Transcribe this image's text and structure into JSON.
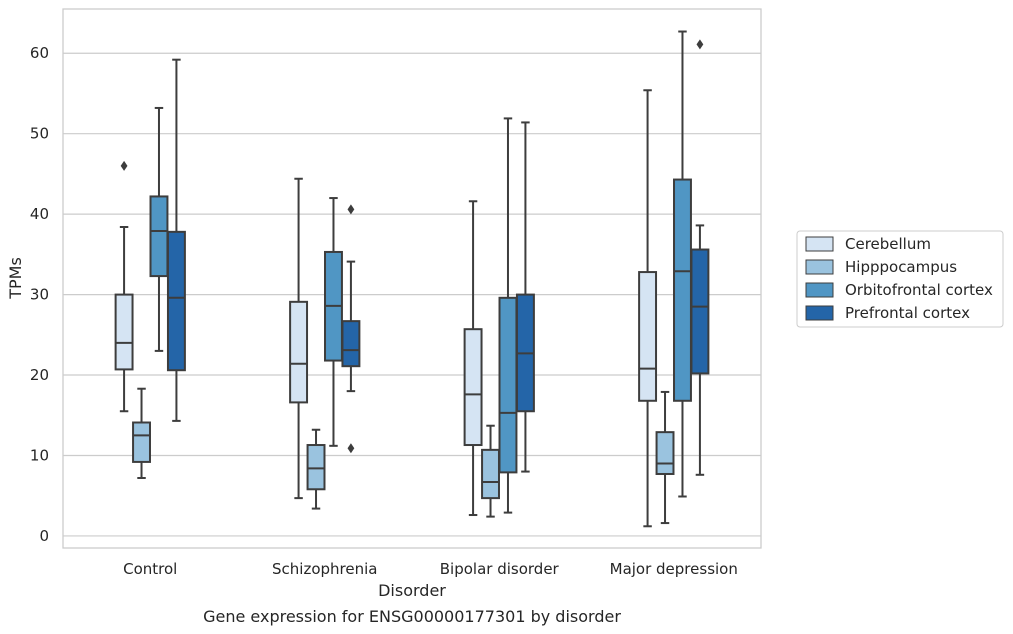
{
  "chart_data": {
    "type": "box",
    "title": "",
    "caption": "Gene expression for ENSG00000177301 by disorder",
    "xlabel": "Disorder",
    "ylabel": "TPMs",
    "ylim": [
      -1.5,
      65.5
    ],
    "yticks": [
      0,
      10,
      20,
      30,
      40,
      50,
      60
    ],
    "grid": "horizontal",
    "legend_position": "right",
    "categories": [
      "Control",
      "Schizophrenia",
      "Bipolar disorder",
      "Major depression"
    ],
    "series": [
      {
        "name": "Cerebellum",
        "color": "#d5e4f3",
        "boxes": [
          {
            "whislo": 15.5,
            "q1": 20.7,
            "med": 24.0,
            "q3": 30.0,
            "whishi": 38.4,
            "fliers": [
              46.0
            ]
          },
          {
            "whislo": 4.7,
            "q1": 16.6,
            "med": 21.4,
            "q3": 29.1,
            "whishi": 44.4,
            "fliers": []
          },
          {
            "whislo": 2.6,
            "q1": 11.3,
            "med": 17.6,
            "q3": 25.7,
            "whishi": 41.6,
            "fliers": []
          },
          {
            "whislo": 1.2,
            "q1": 16.8,
            "med": 20.8,
            "q3": 32.8,
            "whishi": 55.4,
            "fliers": []
          }
        ]
      },
      {
        "name": "Hipppocampus",
        "color": "#9ac3df",
        "boxes": [
          {
            "whislo": 7.2,
            "q1": 9.2,
            "med": 12.5,
            "q3": 14.1,
            "whishi": 18.3,
            "fliers": []
          },
          {
            "whislo": 3.4,
            "q1": 5.8,
            "med": 8.4,
            "q3": 11.3,
            "whishi": 13.2,
            "fliers": []
          },
          {
            "whislo": 2.4,
            "q1": 4.7,
            "med": 6.7,
            "q3": 10.7,
            "whishi": 13.7,
            "fliers": []
          },
          {
            "whislo": 1.6,
            "q1": 7.7,
            "med": 9.0,
            "q3": 12.9,
            "whishi": 17.9,
            "fliers": []
          }
        ]
      },
      {
        "name": "Orbitofrontal cortex",
        "color": "#5096c4",
        "boxes": [
          {
            "whislo": 23.0,
            "q1": 32.3,
            "med": 37.9,
            "q3": 42.2,
            "whishi": 53.2,
            "fliers": []
          },
          {
            "whislo": 11.2,
            "q1": 21.8,
            "med": 28.6,
            "q3": 35.3,
            "whishi": 42.0,
            "fliers": []
          },
          {
            "whislo": 2.9,
            "q1": 7.9,
            "med": 15.3,
            "q3": 29.6,
            "whishi": 51.9,
            "fliers": []
          },
          {
            "whislo": 4.9,
            "q1": 16.8,
            "med": 32.9,
            "q3": 44.3,
            "whishi": 62.7,
            "fliers": []
          }
        ]
      },
      {
        "name": "Prefrontal cortex",
        "color": "#2465a8",
        "boxes": [
          {
            "whislo": 14.3,
            "q1": 20.6,
            "med": 29.6,
            "q3": 37.8,
            "whishi": 59.2,
            "fliers": []
          },
          {
            "whislo": 18.0,
            "q1": 21.1,
            "med": 23.1,
            "q3": 26.7,
            "whishi": 34.1,
            "fliers": [
              40.6,
              10.9
            ]
          },
          {
            "whislo": 8.0,
            "q1": 15.5,
            "med": 22.7,
            "q3": 30.0,
            "whishi": 51.4,
            "fliers": []
          },
          {
            "whislo": 7.6,
            "q1": 20.2,
            "med": 28.5,
            "q3": 35.6,
            "whishi": 38.6,
            "fliers": [
              61.1
            ]
          }
        ]
      }
    ]
  }
}
